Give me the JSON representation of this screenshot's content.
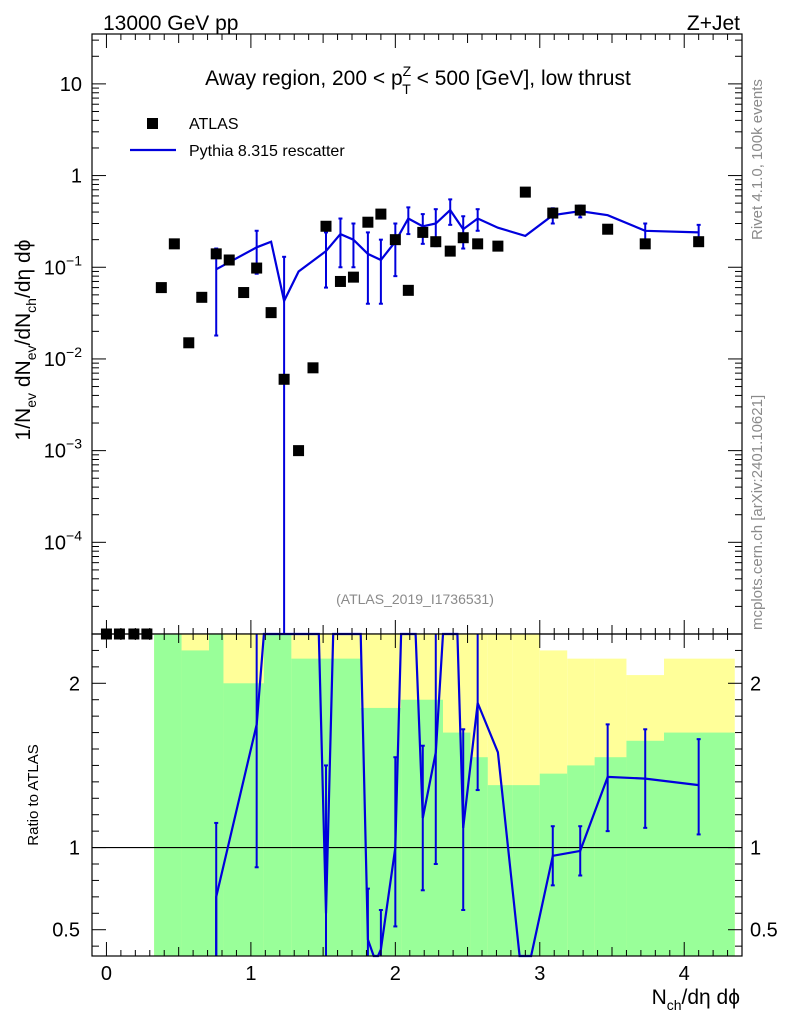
{
  "header": {
    "energy_label": "13000 GeV pp",
    "process_label": "Z+Jet"
  },
  "side_text": {
    "rivet": "Rivet 4.1.0,  100k events",
    "mcplots": "mcplots.cern.ch [arXiv:2401.10621]"
  },
  "chart_data": [
    {
      "type": "scatter",
      "panel": "main",
      "title_parts": {
        "before": "Away region, 200 < p",
        "sup": "Z",
        "sub": "T",
        "after": " < 500 [GeV], low thrust"
      },
      "watermark": "(ATLAS_2019_I1736531)",
      "yscale": "log",
      "ylim": [
        1e-05,
        35
      ],
      "xlim": [
        -0.1,
        4.4
      ],
      "ylabel_parts": {
        "a": "1/N",
        "a_sub": "ev",
        "b": " dN",
        "b_sub": "ev",
        "c": "/dN",
        "c_sub": "ch",
        "d": "/dη dϕ"
      },
      "y_ticks": [
        {
          "value": 10,
          "base": "10",
          "exp": ""
        },
        {
          "value": 1,
          "base": "1",
          "exp": ""
        },
        {
          "value": 0.1,
          "base": "10",
          "exp": "−1"
        },
        {
          "value": 0.01,
          "base": "10",
          "exp": "−2"
        },
        {
          "value": 0.001,
          "base": "10",
          "exp": "−3"
        },
        {
          "value": 0.0001,
          "base": "10",
          "exp": "−4"
        }
      ],
      "legend": {
        "position": "top-left",
        "entries": [
          {
            "label": "ATLAS",
            "style": "marker"
          },
          {
            "label": "Pythia 8.315 rescatter",
            "style": "line"
          }
        ]
      },
      "series": [
        {
          "name": "ATLAS",
          "color": "#000000",
          "points": [
            {
              "x": 0.0,
              "y": 8e-06
            },
            {
              "x": 0.09,
              "y": 8e-06
            },
            {
              "x": 0.19,
              "y": 8e-06
            },
            {
              "x": 0.28,
              "y": 8e-06
            },
            {
              "x": 0.38,
              "y": 0.06
            },
            {
              "x": 0.47,
              "y": 0.18
            },
            {
              "x": 0.57,
              "y": 0.015
            },
            {
              "x": 0.66,
              "y": 0.047
            },
            {
              "x": 0.76,
              "y": 0.14
            },
            {
              "x": 0.85,
              "y": 0.12
            },
            {
              "x": 0.95,
              "y": 0.053
            },
            {
              "x": 1.04,
              "y": 0.098
            },
            {
              "x": 1.14,
              "y": 0.032
            },
            {
              "x": 1.23,
              "y": 0.006
            },
            {
              "x": 1.33,
              "y": 0.001
            },
            {
              "x": 1.43,
              "y": 0.008
            },
            {
              "x": 1.52,
              "y": 0.28
            },
            {
              "x": 1.62,
              "y": 0.07
            },
            {
              "x": 1.71,
              "y": 0.078
            },
            {
              "x": 1.81,
              "y": 0.31
            },
            {
              "x": 1.9,
              "y": 0.38
            },
            {
              "x": 2.0,
              "y": 0.2
            },
            {
              "x": 2.09,
              "y": 0.056
            },
            {
              "x": 2.19,
              "y": 0.24
            },
            {
              "x": 2.28,
              "y": 0.19
            },
            {
              "x": 2.38,
              "y": 0.15
            },
            {
              "x": 2.47,
              "y": 0.21
            },
            {
              "x": 2.57,
              "y": 0.18
            },
            {
              "x": 2.71,
              "y": 0.17
            },
            {
              "x": 2.9,
              "y": 0.66
            },
            {
              "x": 3.09,
              "y": 0.39
            },
            {
              "x": 3.28,
              "y": 0.42
            },
            {
              "x": 3.47,
              "y": 0.26
            },
            {
              "x": 3.73,
              "y": 0.18
            },
            {
              "x": 4.1,
              "y": 0.19
            }
          ]
        },
        {
          "name": "Pythia 8.315 rescatter",
          "color": "#0000dd",
          "points": [
            {
              "x": 0.76,
              "y": 0.095,
              "lo": 0.018,
              "hi": 0.16
            },
            {
              "x": 1.04,
              "y": 0.165,
              "lo": 0.085,
              "hi": 0.25
            },
            {
              "x": 1.14,
              "y": 0.19
            },
            {
              "x": 1.23,
              "y": 0.043,
              "lo": 1e-06,
              "hi": 0.13
            },
            {
              "x": 1.33,
              "y": 0.09
            },
            {
              "x": 1.52,
              "y": 0.15,
              "lo": 0.06,
              "hi": 0.24
            },
            {
              "x": 1.62,
              "y": 0.23,
              "lo": 0.1,
              "hi": 0.34
            },
            {
              "x": 1.71,
              "y": 0.2,
              "lo": 0.1,
              "hi": 0.3
            },
            {
              "x": 1.81,
              "y": 0.14,
              "lo": 0.04,
              "hi": 0.24
            },
            {
              "x": 1.9,
              "y": 0.12,
              "lo": 0.04,
              "hi": 0.2
            },
            {
              "x": 2.0,
              "y": 0.19,
              "lo": 0.08,
              "hi": 0.3
            },
            {
              "x": 2.09,
              "y": 0.34,
              "lo": 0.23,
              "hi": 0.45
            },
            {
              "x": 2.19,
              "y": 0.28,
              "lo": 0.18,
              "hi": 0.38
            },
            {
              "x": 2.28,
              "y": 0.3,
              "lo": 0.17,
              "hi": 0.43
            },
            {
              "x": 2.38,
              "y": 0.42,
              "lo": 0.29,
              "hi": 0.55
            },
            {
              "x": 2.47,
              "y": 0.26,
              "lo": 0.16,
              "hi": 0.36
            },
            {
              "x": 2.57,
              "y": 0.34,
              "lo": 0.25,
              "hi": 0.43
            },
            {
              "x": 2.71,
              "y": 0.27
            },
            {
              "x": 2.9,
              "y": 0.22
            },
            {
              "x": 3.09,
              "y": 0.37,
              "lo": 0.3,
              "hi": 0.44
            },
            {
              "x": 3.28,
              "y": 0.41,
              "lo": 0.35,
              "hi": 0.47
            },
            {
              "x": 3.47,
              "y": 0.37
            },
            {
              "x": 3.73,
              "y": 0.25,
              "lo": 0.2,
              "hi": 0.3
            },
            {
              "x": 4.1,
              "y": 0.24,
              "lo": 0.19,
              "hi": 0.29
            }
          ]
        }
      ]
    },
    {
      "type": "line",
      "panel": "ratio",
      "ylabel": "Ratio to ATLAS",
      "ylim": [
        0.34,
        2.3
      ],
      "xlim": [
        -0.1,
        4.4
      ],
      "xlabel_parts": {
        "a": "N",
        "a_sub": "ch",
        "b": "/dη dϕ"
      },
      "x_ticks": [
        "0",
        "1",
        "2",
        "3",
        "4"
      ],
      "y_ticks": [
        "0.5",
        "1",
        "2"
      ],
      "reference": 1,
      "bands": {
        "green_color": "#99ff99",
        "yellow_color": "#ffff99",
        "green": [
          {
            "x0": 0.33,
            "x1": 0.52,
            "lo": 0.34,
            "hi": 2.3
          },
          {
            "x0": 0.52,
            "x1": 0.71,
            "lo": 0.34,
            "hi": 2.2
          },
          {
            "x0": 0.71,
            "x1": 0.81,
            "lo": 0.34,
            "hi": 2.3
          },
          {
            "x0": 0.81,
            "x1": 1.09,
            "lo": 0.34,
            "hi": 2.0
          },
          {
            "x0": 1.09,
            "x1": 1.28,
            "lo": 0.34,
            "hi": 2.3
          },
          {
            "x0": 1.28,
            "x1": 1.76,
            "lo": 0.34,
            "hi": 2.15
          },
          {
            "x0": 1.76,
            "x1": 2.04,
            "lo": 0.34,
            "hi": 1.85
          },
          {
            "x0": 2.04,
            "x1": 2.33,
            "lo": 0.34,
            "hi": 1.9
          },
          {
            "x0": 2.33,
            "x1": 2.52,
            "lo": 0.34,
            "hi": 1.7
          },
          {
            "x0": 2.52,
            "x1": 2.64,
            "lo": 0.34,
            "hi": 1.55
          },
          {
            "x0": 2.64,
            "x1": 2.81,
            "lo": 0.34,
            "hi": 1.38
          },
          {
            "x0": 2.81,
            "x1": 3.0,
            "lo": 0.34,
            "hi": 1.38
          },
          {
            "x0": 3.0,
            "x1": 3.19,
            "lo": 0.34,
            "hi": 1.45
          },
          {
            "x0": 3.19,
            "x1": 3.38,
            "lo": 0.34,
            "hi": 1.5
          },
          {
            "x0": 3.38,
            "x1": 3.6,
            "lo": 0.34,
            "hi": 1.55
          },
          {
            "x0": 3.6,
            "x1": 3.86,
            "lo": 0.34,
            "hi": 1.65
          },
          {
            "x0": 3.86,
            "x1": 4.35,
            "lo": 0.34,
            "hi": 1.7
          }
        ],
        "yellow": [
          {
            "x0": 0.33,
            "x1": 0.52,
            "lo": 0.34,
            "hi": 2.3
          },
          {
            "x0": 0.52,
            "x1": 0.71,
            "lo": 0.34,
            "hi": 2.3
          },
          {
            "x0": 0.71,
            "x1": 0.81,
            "lo": 0.34,
            "hi": 2.3
          },
          {
            "x0": 0.81,
            "x1": 1.09,
            "lo": 0.34,
            "hi": 2.3
          },
          {
            "x0": 1.09,
            "x1": 1.28,
            "lo": 0.34,
            "hi": 2.3
          },
          {
            "x0": 1.28,
            "x1": 1.76,
            "lo": 0.34,
            "hi": 2.3
          },
          {
            "x0": 1.76,
            "x1": 2.04,
            "lo": 0.34,
            "hi": 2.3
          },
          {
            "x0": 2.04,
            "x1": 2.33,
            "lo": 0.34,
            "hi": 2.3
          },
          {
            "x0": 2.33,
            "x1": 2.52,
            "lo": 0.34,
            "hi": 2.3
          },
          {
            "x0": 2.52,
            "x1": 2.64,
            "lo": 0.34,
            "hi": 2.3
          },
          {
            "x0": 2.64,
            "x1": 2.81,
            "lo": 0.34,
            "hi": 2.3
          },
          {
            "x0": 2.81,
            "x1": 3.0,
            "lo": 0.34,
            "hi": 2.3
          },
          {
            "x0": 3.0,
            "x1": 3.19,
            "lo": 0.34,
            "hi": 2.2
          },
          {
            "x0": 3.19,
            "x1": 3.38,
            "lo": 0.34,
            "hi": 2.15
          },
          {
            "x0": 3.38,
            "x1": 3.6,
            "lo": 0.34,
            "hi": 2.15
          },
          {
            "x0": 3.6,
            "x1": 3.86,
            "lo": 0.34,
            "hi": 2.05
          },
          {
            "x0": 3.86,
            "x1": 4.35,
            "lo": 0.34,
            "hi": 2.15
          }
        ]
      },
      "series": [
        {
          "name": "Pythia 8.315 rescatter / ATLAS",
          "color": "#0000dd",
          "points": [
            {
              "x": 0.76,
              "y": 0.34,
              "lo": 0.34,
              "hi": 1.15
            },
            {
              "x": 0.76,
              "y": 0.7
            },
            {
              "x": 1.04,
              "y": 1.75,
              "lo": 0.88,
              "hi": 2.3
            },
            {
              "x": 1.09,
              "y": 2.3
            },
            {
              "x": 1.47,
              "y": 2.3
            },
            {
              "x": 1.52,
              "y": 0.6,
              "lo": 0.34,
              "hi": 1.5
            },
            {
              "x": 1.57,
              "y": 2.3
            },
            {
              "x": 1.76,
              "y": 2.3
            },
            {
              "x": 1.81,
              "y": 0.44,
              "lo": 0.34,
              "hi": 0.75
            },
            {
              "x": 1.85,
              "y": 0.34
            },
            {
              "x": 1.88,
              "y": 0.34
            },
            {
              "x": 1.9,
              "y": 0.38,
              "lo": 0.34,
              "hi": 0.62
            },
            {
              "x": 2.0,
              "y": 1.0,
              "lo": 0.52,
              "hi": 1.55
            },
            {
              "x": 2.04,
              "y": 2.3
            },
            {
              "x": 2.14,
              "y": 2.3
            },
            {
              "x": 2.19,
              "y": 1.18,
              "lo": 0.74,
              "hi": 1.62
            },
            {
              "x": 2.28,
              "y": 1.58,
              "lo": 0.9,
              "hi": 2.3
            },
            {
              "x": 2.33,
              "y": 2.3
            },
            {
              "x": 2.43,
              "y": 2.3
            },
            {
              "x": 2.47,
              "y": 1.12,
              "lo": 0.62,
              "hi": 1.72
            },
            {
              "x": 2.57,
              "y": 1.88,
              "lo": 1.35,
              "hi": 2.3
            },
            {
              "x": 2.71,
              "y": 1.58
            },
            {
              "x": 2.86,
              "y": 0.34
            },
            {
              "x": 2.94,
              "y": 0.34
            },
            {
              "x": 3.09,
              "y": 0.95,
              "lo": 0.77,
              "hi": 1.13
            },
            {
              "x": 3.28,
              "y": 0.98,
              "lo": 0.83,
              "hi": 1.13
            },
            {
              "x": 3.47,
              "y": 1.43,
              "lo": 1.1,
              "hi": 1.75
            },
            {
              "x": 3.73,
              "y": 1.42,
              "lo": 1.12,
              "hi": 1.72
            },
            {
              "x": 4.1,
              "y": 1.38,
              "lo": 1.08,
              "hi": 1.66
            }
          ]
        }
      ]
    }
  ]
}
